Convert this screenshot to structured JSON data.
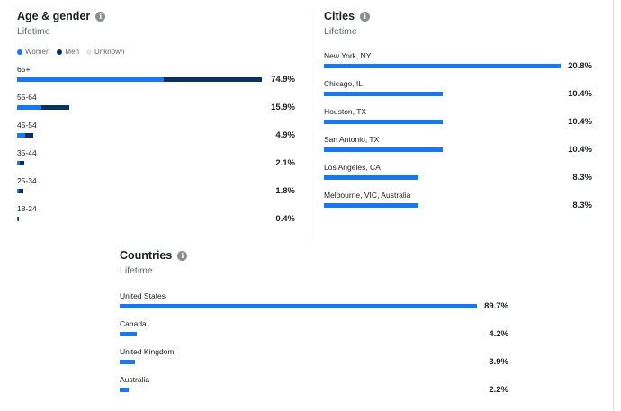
{
  "colors": {
    "women": "#1877f2",
    "men": "#0a3164",
    "unknown": "#e4e6eb",
    "bar": "#1877f2"
  },
  "age_gender": {
    "title": "Age & gender",
    "subtitle": "Lifetime",
    "info_icon": "info-icon",
    "legend": [
      {
        "label": "Women",
        "color": "#1877f2"
      },
      {
        "label": "Men",
        "color": "#0a3164"
      },
      {
        "label": "Unknown",
        "color": "#e4e6eb"
      }
    ],
    "rows": [
      {
        "label": "65+",
        "value_text": "74.9%",
        "women": 44.9,
        "men": 30.0
      },
      {
        "label": "55-64",
        "value_text": "15.9%",
        "women": 7.5,
        "men": 8.4
      },
      {
        "label": "45-54",
        "value_text": "4.9%",
        "women": 2.5,
        "men": 2.4
      },
      {
        "label": "35-44",
        "value_text": "2.1%",
        "women": 0.8,
        "men": 1.3
      },
      {
        "label": "25-34",
        "value_text": "1.8%",
        "women": 0.6,
        "men": 1.2
      },
      {
        "label": "18-24",
        "value_text": "0.4%",
        "women": 0.2,
        "men": 0.2
      }
    ]
  },
  "cities": {
    "title": "Cities",
    "subtitle": "Lifetime",
    "info_icon": "info-icon",
    "rows": [
      {
        "label": "New York, NY",
        "value": 20.8,
        "value_text": "20.8%"
      },
      {
        "label": "Chicago, IL",
        "value": 10.4,
        "value_text": "10.4%"
      },
      {
        "label": "Houston, TX",
        "value": 10.4,
        "value_text": "10.4%"
      },
      {
        "label": "San Antonio, TX",
        "value": 10.4,
        "value_text": "10.4%"
      },
      {
        "label": "Los Angeles, CA",
        "value": 8.3,
        "value_text": "8.3%"
      },
      {
        "label": "Melbourne, VIC, Australia",
        "value": 8.3,
        "value_text": "8.3%"
      }
    ]
  },
  "countries": {
    "title": "Countries",
    "subtitle": "Lifetime",
    "info_icon": "info-icon",
    "rows": [
      {
        "label": "United States",
        "value": 89.7,
        "value_text": "89.7%"
      },
      {
        "label": "Canada",
        "value": 4.2,
        "value_text": "4.2%"
      },
      {
        "label": "United Kingdom",
        "value": 3.9,
        "value_text": "3.9%"
      },
      {
        "label": "Australia",
        "value": 2.2,
        "value_text": "2.2%"
      }
    ]
  }
}
